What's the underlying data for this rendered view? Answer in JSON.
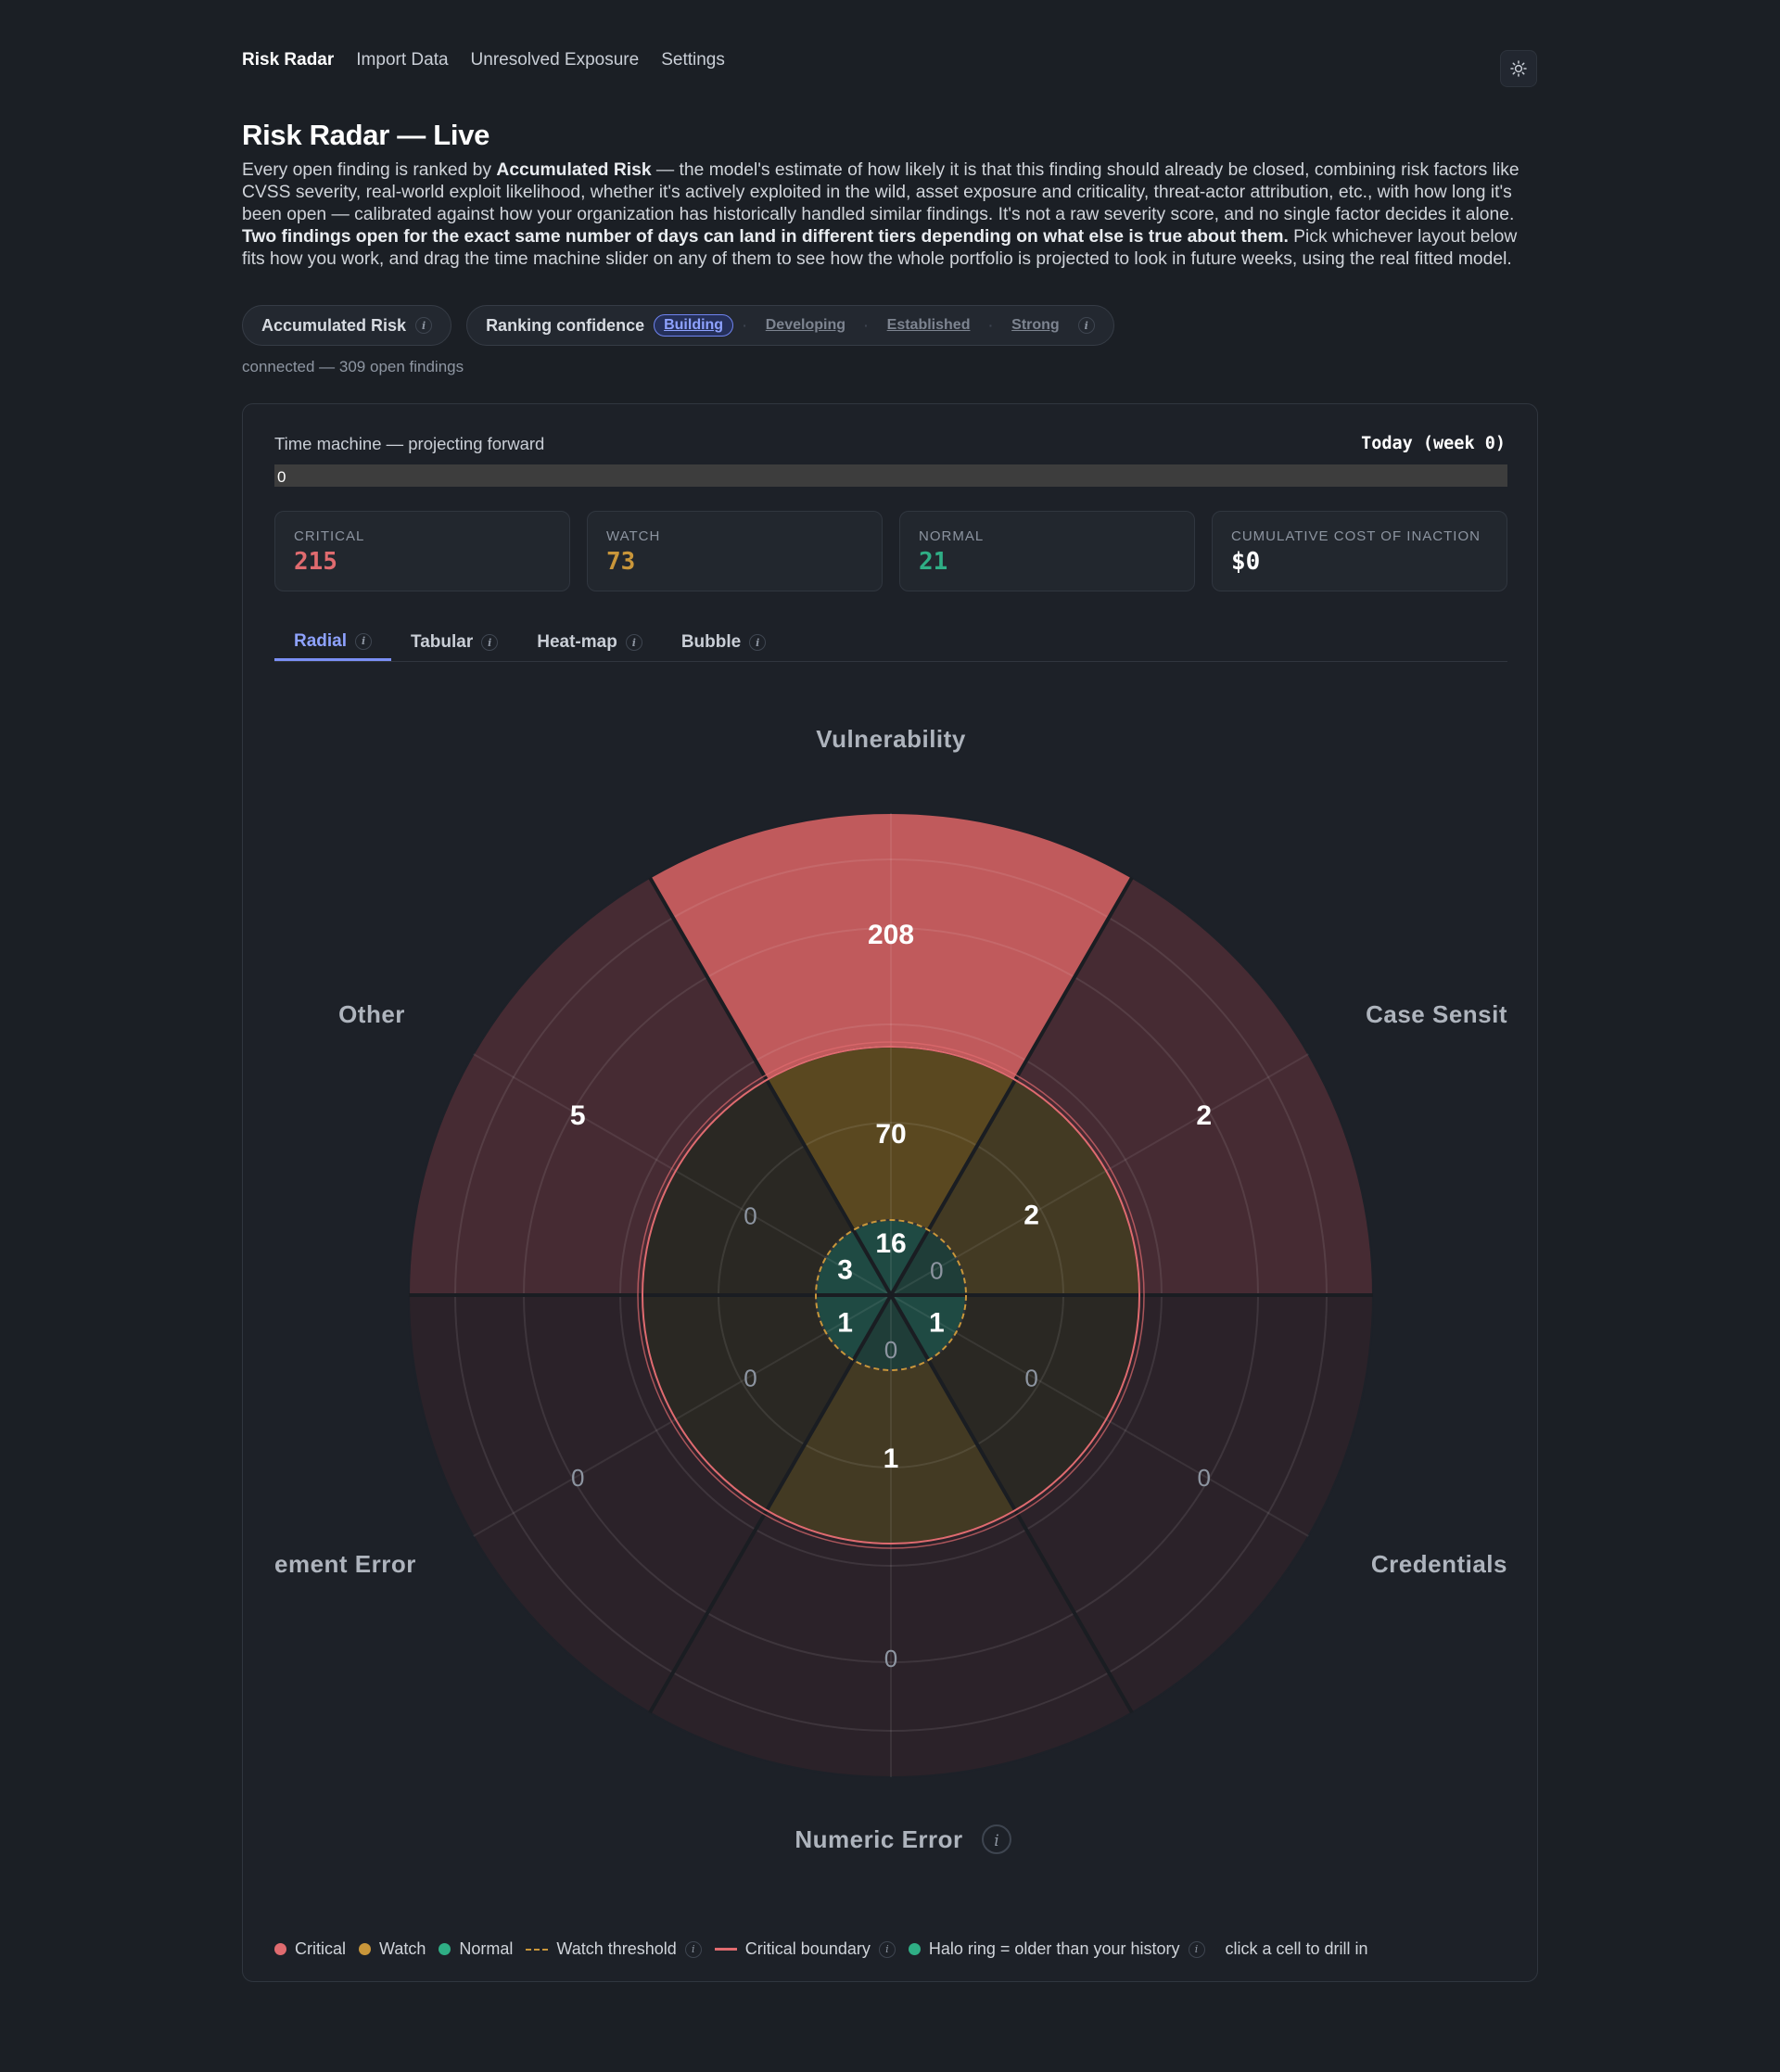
{
  "nav": {
    "items": [
      "Risk Radar",
      "Import Data",
      "Unresolved Exposure",
      "Settings"
    ],
    "theme_icon": "sun-icon"
  },
  "header": {
    "title": "Risk Radar — Live",
    "intro_1": "Every open finding is ranked by ",
    "intro_b1": "Accumulated Risk",
    "intro_2": " — the model's estimate of how likely it is that this finding should already be closed, combining risk factors like CVSS severity, real-world exploit likelihood, whether it's actively exploited in the wild, asset exposure and criticality, threat-actor attribution, etc., with how long it's been open — calibrated against how your organization has historically handled similar findings. It's not a raw severity score, and no single factor decides it alone. ",
    "intro_b2": "Two findings open for the exact same number of days can land in different tiers depending on what else is true about them.",
    "intro_3": " Pick whichever layout below fits how you work, and drag the time machine slider on any of them to see how the whole portfolio is projected to look in future weeks, using the real fitted model."
  },
  "chips": {
    "accumulated": "Accumulated Risk",
    "ranking_label": "Ranking confidence",
    "levels": [
      "Building",
      "Developing",
      "Established",
      "Strong"
    ],
    "active_level": "Building"
  },
  "status": "connected — 309 open findings",
  "time_machine": {
    "label": "Time machine — projecting forward",
    "week_label": "Today (week 0)",
    "slider_value": "0",
    "slider_position": 0
  },
  "stats": [
    {
      "label": "CRITICAL",
      "value": "215",
      "color": "#e06b6f"
    },
    {
      "label": "WATCH",
      "value": "73",
      "color": "#c9963a"
    },
    {
      "label": "NORMAL",
      "value": "21",
      "color": "#2fae85"
    },
    {
      "label": "CUMULATIVE COST OF INACTION",
      "value": "$0",
      "color": "#ffffff"
    }
  ],
  "tabs": [
    "Radial",
    "Tabular",
    "Heat-map",
    "Bubble"
  ],
  "active_tab": "Radial",
  "colors": {
    "critical": "#e06b6f",
    "watch": "#c9963a",
    "normal": "#2fae85",
    "accent": "#8ea2ff"
  },
  "chart_data": {
    "type": "radial",
    "tiers": [
      "Critical",
      "Watch",
      "Normal"
    ],
    "categories": [
      "Vulnerability",
      "Case Sensit",
      "Credentials",
      "Numeric Error",
      "ement Error",
      "Other"
    ],
    "series": [
      {
        "name": "Critical",
        "values": [
          208,
          2,
          0,
          0,
          0,
          5
        ]
      },
      {
        "name": "Watch",
        "values": [
          70,
          2,
          0,
          1,
          0,
          0
        ]
      },
      {
        "name": "Normal",
        "values": [
          16,
          0,
          1,
          0,
          1,
          3
        ]
      }
    ],
    "info_category": "Numeric Error"
  },
  "legend": {
    "critical": "Critical",
    "watch": "Watch",
    "normal": "Normal",
    "watch_threshold": "Watch threshold",
    "critical_boundary": "Critical boundary",
    "halo": "Halo ring = older than your history",
    "hint": "click a cell to drill in"
  }
}
